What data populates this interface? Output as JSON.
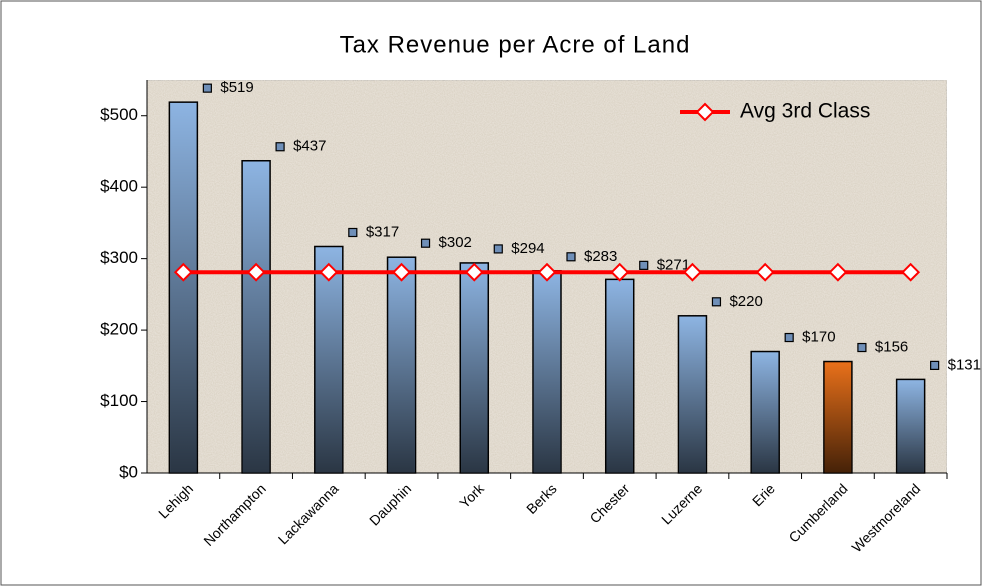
{
  "chart_data": {
    "type": "bar",
    "title": "Tax Revenue per Acre of Land",
    "categories": [
      "Lehigh",
      "Northampton",
      "Lackawanna",
      "Dauphin",
      "York",
      "Berks",
      "Chester",
      "Luzerne",
      "Erie",
      "Cumberland",
      "Westmoreland"
    ],
    "series": [
      {
        "type": "bar",
        "color": "#8db4e2",
        "colors": [
          "#8db4e2",
          "#8db4e2",
          "#8db4e2",
          "#8db4e2",
          "#8db4e2",
          "#8db4e2",
          "#8db4e2",
          "#8db4e2",
          "#8db4e2",
          "#e8701a",
          "#8db4e2"
        ],
        "values": [
          519,
          437,
          317,
          302,
          294,
          283,
          271,
          220,
          170,
          156,
          131
        ],
        "value_labels": [
          "$519",
          "$437",
          "$317",
          "$302",
          "$294",
          "$283",
          "$271",
          "$220",
          "$170",
          "$156",
          "$131"
        ]
      },
      {
        "type": "line",
        "name": "Avg 3rd Class",
        "color": "#ff0000",
        "values": [
          281,
          281,
          281,
          281,
          281,
          281,
          281,
          281,
          281,
          281,
          281
        ]
      }
    ],
    "ylim": [
      0,
      550
    ],
    "yticks": [
      {
        "value": 0,
        "label": "$0"
      },
      {
        "value": 100,
        "label": "$100"
      },
      {
        "value": 200,
        "label": "$200"
      },
      {
        "value": 300,
        "label": "$300"
      },
      {
        "value": 400,
        "label": "$400"
      },
      {
        "value": 500,
        "label": "$500"
      }
    ],
    "legend": "top-right"
  }
}
